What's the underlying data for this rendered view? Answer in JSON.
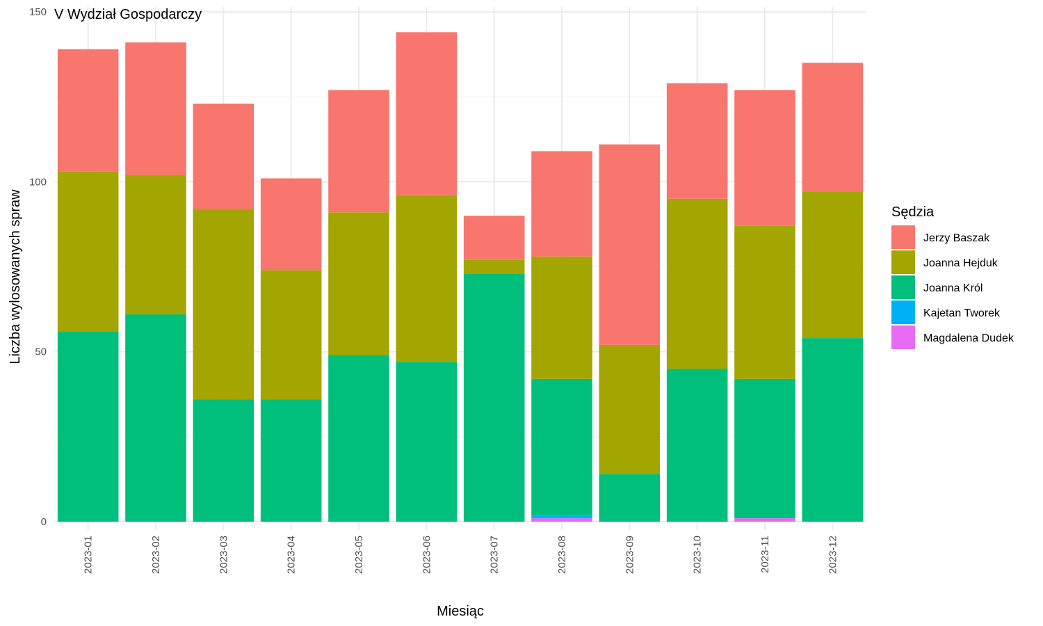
{
  "chart_data": {
    "type": "bar",
    "stacked": true,
    "title": "V Wydział Gospodarczy",
    "xlabel": "Miesiąc",
    "ylabel": "Liczba wylosowanych spraw",
    "ylim": [
      0,
      150
    ],
    "yticks": [
      0,
      50,
      100,
      150
    ],
    "grid": true,
    "legend_title": "Sędzia",
    "legend_position": "right",
    "categories": [
      "2023-01",
      "2023-02",
      "2023-03",
      "2023-04",
      "2023-05",
      "2023-06",
      "2023-07",
      "2023-08",
      "2023-09",
      "2023-10",
      "2023-11",
      "2023-12"
    ],
    "series": [
      {
        "name": "Magdalena Dudek",
        "color": "#E76BF3",
        "values": [
          0,
          0,
          0,
          0,
          0,
          0,
          0,
          1,
          0,
          0,
          1,
          0
        ]
      },
      {
        "name": "Kajetan Tworek",
        "color": "#00B0F6",
        "values": [
          0,
          0,
          0,
          0,
          0,
          0,
          0,
          1,
          0,
          0,
          0,
          0
        ]
      },
      {
        "name": "Joanna Król",
        "color": "#00BF7D",
        "values": [
          56,
          61,
          36,
          36,
          49,
          47,
          73,
          40,
          14,
          45,
          41,
          54
        ]
      },
      {
        "name": "Joanna Hejduk",
        "color": "#A3A500",
        "values": [
          47,
          41,
          56,
          38,
          42,
          49,
          4,
          36,
          38,
          50,
          45,
          43
        ]
      },
      {
        "name": "Jerzy Baszak",
        "color": "#F8766D",
        "values": [
          36,
          39,
          31,
          27,
          36,
          48,
          13,
          31,
          59,
          34,
          40,
          38
        ]
      }
    ],
    "legend_order": [
      "Jerzy Baszak",
      "Joanna Hejduk",
      "Joanna Król",
      "Kajetan Tworek",
      "Magdalena Dudek"
    ]
  }
}
